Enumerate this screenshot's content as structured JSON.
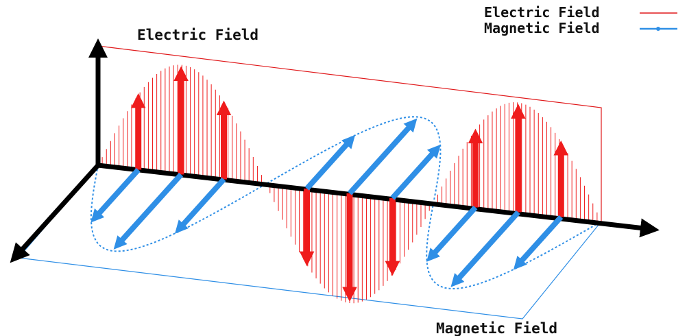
{
  "labels": {
    "electric_top": "Electric Field",
    "magnetic_bottom": "Magnetic Field"
  },
  "legend": {
    "electric": {
      "label": "Electric Field",
      "color": "#e0191b"
    },
    "magnetic": {
      "label": "Magnetic Field",
      "color": "#2f8fe6"
    }
  },
  "colors": {
    "axis": "#000000",
    "electric": "#ef1c1c",
    "electric_plane": "#e0191b",
    "magnetic": "#2f8fe6",
    "magnetic_plane": "#2f8fe6"
  }
}
